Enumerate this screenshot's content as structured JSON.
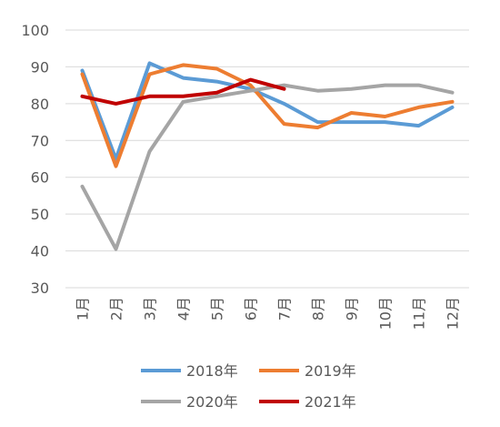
{
  "chart_data": {
    "type": "line",
    "title": "",
    "xlabel": "",
    "ylabel": "",
    "categories": [
      "1月",
      "2月",
      "3月",
      "4月",
      "5月",
      "6月",
      "7月",
      "8月",
      "9月",
      "10月",
      "11月",
      "12月"
    ],
    "ylim": [
      30,
      100
    ],
    "yticks": [
      30,
      40,
      50,
      60,
      70,
      80,
      90,
      100
    ],
    "grid": true,
    "legend_position": "bottom",
    "series": [
      {
        "name": "2018年",
        "color": "#5b9bd5",
        "values": [
          89,
          65,
          91,
          87,
          86,
          84,
          80,
          75,
          75,
          75,
          74,
          79
        ]
      },
      {
        "name": "2019年",
        "color": "#ed7d31",
        "values": [
          88,
          63,
          88,
          90.5,
          89.5,
          85,
          74.5,
          73.5,
          77.5,
          76.5,
          79,
          80.5
        ]
      },
      {
        "name": "2020年",
        "color": "#a5a5a5",
        "values": [
          57.5,
          40.5,
          67,
          80.5,
          82,
          83.5,
          85,
          83.5,
          84,
          85,
          85,
          83
        ]
      },
      {
        "name": "2021年",
        "color": "#c00000",
        "values": [
          82,
          80,
          82,
          82,
          83,
          86.5,
          84,
          null,
          null,
          null,
          null,
          null
        ]
      }
    ]
  }
}
